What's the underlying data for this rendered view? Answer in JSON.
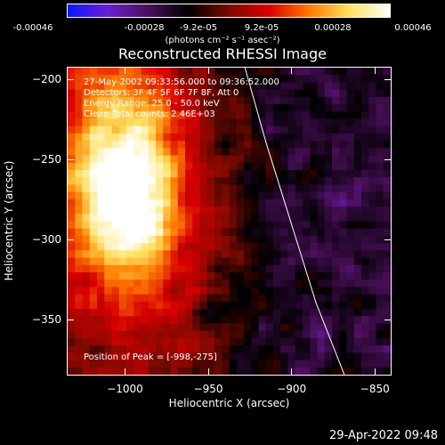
{
  "colorbar": {
    "tick_labels": [
      "-0.00046",
      "-0.00028",
      "-9.2e-05",
      "9.2e-05",
      "0.00028",
      "0.00046"
    ],
    "units": "(photons cm⁻² s⁻¹ asec⁻²)",
    "stops": [
      "#0a17ff",
      "#6a1fd0",
      "#4a0f5a",
      "#000000",
      "#7a0a00",
      "#d80000",
      "#ff7a00",
      "#ffe060",
      "#ffffff"
    ]
  },
  "title": "Reconstructed RHESSI Image",
  "info": {
    "time_range": "27-May-2002 09:33:56.000 to 09:36:52.000",
    "detectors": "Detectors: 3F 4F 5F 6F 7F 8F, Att 0",
    "energy_range": "Energy Range: 25.0 - 50.0 keV",
    "method_counts": "Clean    Total counts: 2.46E+03",
    "peak_position": "Position of Peak = [-998,-275]"
  },
  "axes": {
    "xlabel": "Heliocentric X (arcsec)",
    "ylabel": "Heliocentric Y (arcsec)",
    "xlim": [
      -1035,
      -840
    ],
    "ylim": [
      -385,
      -192
    ],
    "xticks": [
      -1000,
      -950,
      -900,
      -850
    ],
    "xtick_labels": [
      "−1000",
      "−950",
      "−900",
      "−850"
    ],
    "yticks": [
      -200,
      -250,
      -300,
      -350
    ],
    "ytick_labels": [
      "−200",
      "−250",
      "−300",
      "−350"
    ]
  },
  "chart_data": {
    "type": "heatmap",
    "title": "Reconstructed RHESSI Image",
    "xlabel": "Heliocentric X (arcsec)",
    "ylabel": "Heliocentric Y (arcsec)",
    "xlim": [
      -1035,
      -840
    ],
    "ylim": [
      -385,
      -192
    ],
    "value_range": [
      -0.00046,
      0.00046
    ],
    "peak": {
      "x": -998,
      "y": -275
    },
    "limb_curve": {
      "x": [
        -928,
        -915,
        -900,
        -885,
        -868
      ],
      "y": [
        -192,
        -240,
        -290,
        -340,
        -385
      ]
    },
    "colormap_note": "blue-purple for negative, red-yellow-white for positive"
  },
  "timestamp": "29-Apr-2022 09:48"
}
